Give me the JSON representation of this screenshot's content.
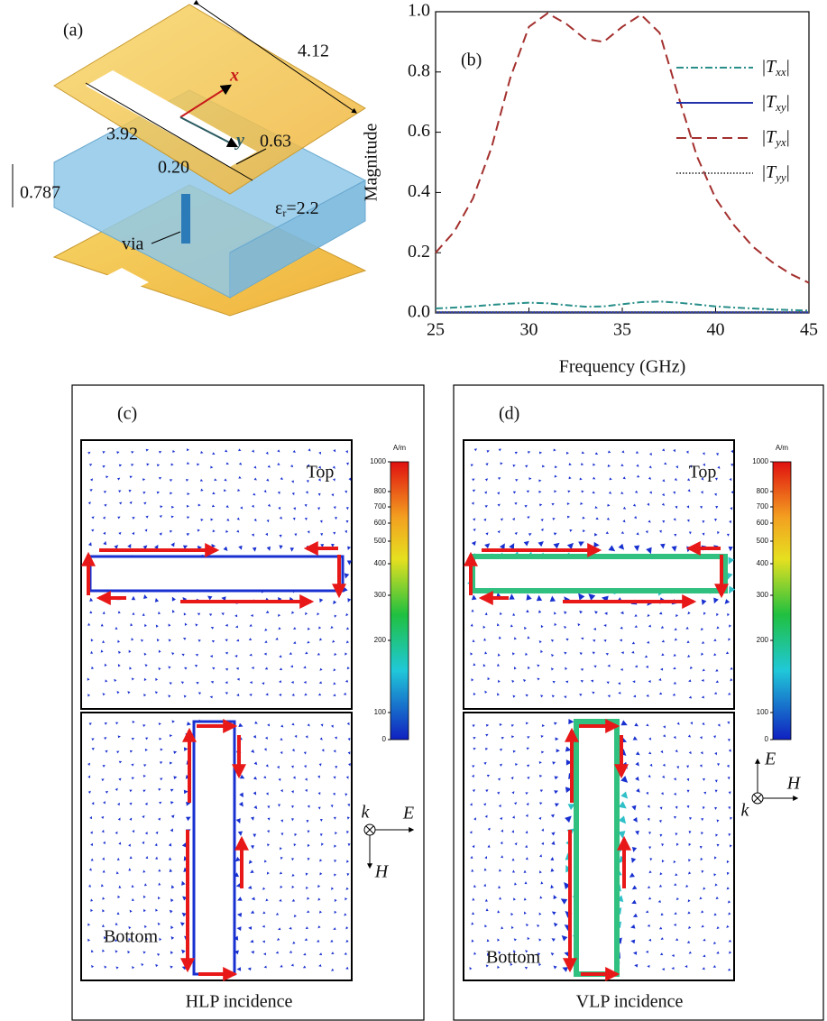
{
  "panel_a": {
    "label": "(a)",
    "dim_width": "4.12",
    "dim_length": "3.92",
    "dim_gap": "0.63",
    "dim_slot": "0.20",
    "dim_thickness": "0.787",
    "permittivity_symbol": "ε",
    "permittivity_sub": "r",
    "permittivity_value": "=2.2",
    "via": "via",
    "axis_x": "x",
    "axis_y": "y"
  },
  "chart_data": {
    "type": "line",
    "label": "(b)",
    "x_label": "Frequency (GHz)",
    "y_label": "Magnitude",
    "x": [
      25,
      26,
      27,
      28,
      29,
      30,
      31,
      32,
      33,
      34,
      35,
      36,
      37,
      38,
      39,
      40,
      41,
      42,
      43,
      44,
      45
    ],
    "series": [
      {
        "name": "|Txx|",
        "color": "#2a8f8a",
        "style": "dashdot",
        "values": [
          0.015,
          0.018,
          0.022,
          0.027,
          0.031,
          0.034,
          0.032,
          0.026,
          0.021,
          0.022,
          0.029,
          0.036,
          0.038,
          0.034,
          0.028,
          0.022,
          0.018,
          0.015,
          0.012,
          0.01,
          0.008
        ]
      },
      {
        "name": "|Txy|",
        "color": "#2233aa",
        "style": "solid",
        "values": [
          0.002,
          0.002,
          0.002,
          0.002,
          0.002,
          0.002,
          0.002,
          0.002,
          0.002,
          0.002,
          0.002,
          0.002,
          0.002,
          0.002,
          0.002,
          0.002,
          0.002,
          0.002,
          0.002,
          0.002,
          0.002
        ]
      },
      {
        "name": "|Tyx|",
        "color": "#a3302e",
        "style": "dashed",
        "values": [
          0.2,
          0.27,
          0.38,
          0.55,
          0.78,
          0.95,
          0.995,
          0.96,
          0.91,
          0.9,
          0.95,
          0.99,
          0.93,
          0.72,
          0.52,
          0.38,
          0.29,
          0.22,
          0.17,
          0.13,
          0.1
        ]
      },
      {
        "name": "|Tyy|",
        "color": "#555555",
        "style": "dotted",
        "values": [
          0.003,
          0.003,
          0.003,
          0.003,
          0.003,
          0.003,
          0.003,
          0.003,
          0.003,
          0.003,
          0.003,
          0.003,
          0.003,
          0.003,
          0.003,
          0.003,
          0.003,
          0.003,
          0.003,
          0.003,
          0.003
        ]
      }
    ],
    "xlim": [
      25,
      45
    ],
    "xticks": [
      25,
      30,
      35,
      40,
      45
    ],
    "ylim": [
      0,
      1
    ],
    "yticks": [
      {
        "value": 0,
        "label": "0.0"
      },
      0.2,
      0.4,
      0.6,
      0.8,
      {
        "value": 1,
        "label": "1.0"
      }
    ],
    "legend": "upper right"
  },
  "panel_c": {
    "label": "(c)",
    "top": "Top",
    "bottom": "Bottom",
    "caption": "HLP incidence",
    "unit": "A/m",
    "colorbar_ticks": [
      1000,
      800,
      700,
      600,
      500,
      400,
      300,
      200,
      100,
      0
    ],
    "k": "k",
    "e": "E",
    "h": "H"
  },
  "panel_d": {
    "label": "(d)",
    "top": "Top",
    "bottom": "Bottom",
    "caption": "VLP incidence",
    "unit": "A/m",
    "colorbar_ticks": [
      1000,
      800,
      700,
      600,
      500,
      400,
      300,
      200,
      100,
      0
    ],
    "k": "k",
    "e": "E",
    "h": "H"
  }
}
